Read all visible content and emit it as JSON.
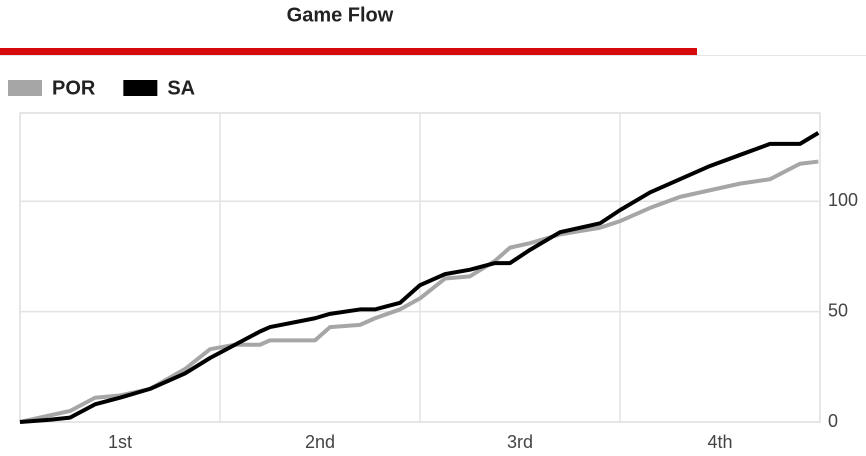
{
  "chart_data": {
    "type": "line",
    "title": "Game Flow",
    "x": [
      0,
      1.8,
      3,
      4.5,
      6,
      7.8,
      9.9,
      11.4,
      12.9,
      14.4,
      15,
      17.7,
      18.6,
      20.4,
      21.3,
      22.8,
      24,
      25.5,
      27,
      28.5,
      29.4,
      30.6,
      32.4,
      34.8,
      36,
      37.8,
      39.6,
      41.4,
      43.2,
      45,
      46.8,
      47.9
    ],
    "series": [
      {
        "name": "POR",
        "color": "#a6a6a6",
        "values": [
          0,
          3,
          5,
          11,
          12,
          15,
          24,
          33,
          35,
          35,
          37,
          37,
          43,
          44,
          47,
          51,
          56,
          65,
          66,
          73,
          79,
          81,
          85,
          88,
          91,
          97,
          102,
          105,
          108,
          110,
          117,
          118
        ]
      },
      {
        "name": "SA",
        "color": "#000000",
        "values": [
          0,
          1,
          2,
          8,
          11,
          15,
          22,
          29,
          35,
          41,
          43,
          47,
          49,
          51,
          51,
          54,
          62,
          67,
          69,
          72,
          72,
          78,
          86,
          90,
          96,
          104,
          110,
          116,
          121,
          126,
          126,
          131
        ]
      }
    ],
    "xlim": [
      0,
      48
    ],
    "xticks": [
      {
        "value": 6,
        "label": "1st"
      },
      {
        "value": 18,
        "label": "2nd"
      },
      {
        "value": 30,
        "label": "3rd"
      },
      {
        "value": 42,
        "label": "4th"
      }
    ],
    "ylim": [
      0,
      140
    ],
    "yticks": [
      0,
      50,
      100
    ],
    "grid": true,
    "legend": "top-left"
  }
}
